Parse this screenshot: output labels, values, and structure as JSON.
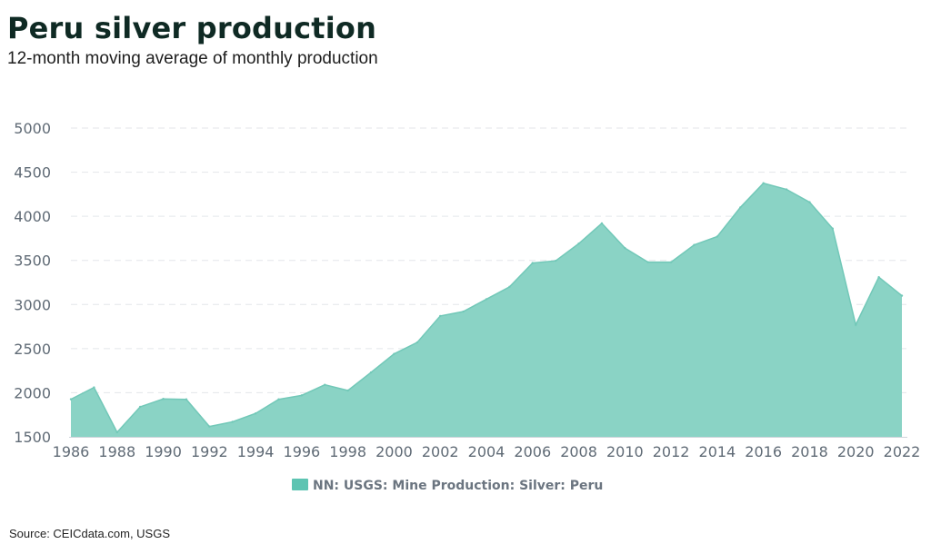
{
  "chart_data": {
    "type": "area",
    "title": "Peru silver production",
    "subtitle": "12-month moving average of monthly production",
    "xlabel": "",
    "ylabel": "",
    "ylim": [
      1500,
      5000
    ],
    "yticks": [
      1500,
      2000,
      2500,
      3000,
      3500,
      4000,
      4500,
      5000
    ],
    "xticks": [
      1986,
      1988,
      1990,
      1992,
      1994,
      1996,
      1998,
      2000,
      2002,
      2004,
      2006,
      2008,
      2010,
      2012,
      2014,
      2016,
      2018,
      2020,
      2022
    ],
    "grid": true,
    "legend_position": "bottom",
    "color": "#8ad3c5",
    "legend_color": "#5dc4b2",
    "x": [
      1986,
      1987,
      1988,
      1989,
      1990,
      1991,
      1992,
      1993,
      1994,
      1995,
      1996,
      1997,
      1998,
      1999,
      2000,
      2001,
      2002,
      2003,
      2004,
      2005,
      2006,
      2007,
      2008,
      2009,
      2010,
      2011,
      2012,
      2013,
      2014,
      2015,
      2016,
      2017,
      2018,
      2019,
      2020,
      2021,
      2022
    ],
    "series": [
      {
        "name": "NN: USGS: Mine Production: Silver: Peru",
        "values": [
          1926,
          2060,
          1552,
          1840,
          1930,
          1925,
          1617,
          1670,
          1765,
          1925,
          1970,
          2090,
          2025,
          2230,
          2440,
          2570,
          2870,
          2920,
          3060,
          3200,
          3470,
          3495,
          3690,
          3920,
          3640,
          3480,
          3480,
          3675,
          3770,
          4100,
          4375,
          4305,
          4160,
          3860,
          2770,
          3310,
          3100
        ]
      }
    ]
  },
  "source": "Source: CEICdata.com, USGS"
}
